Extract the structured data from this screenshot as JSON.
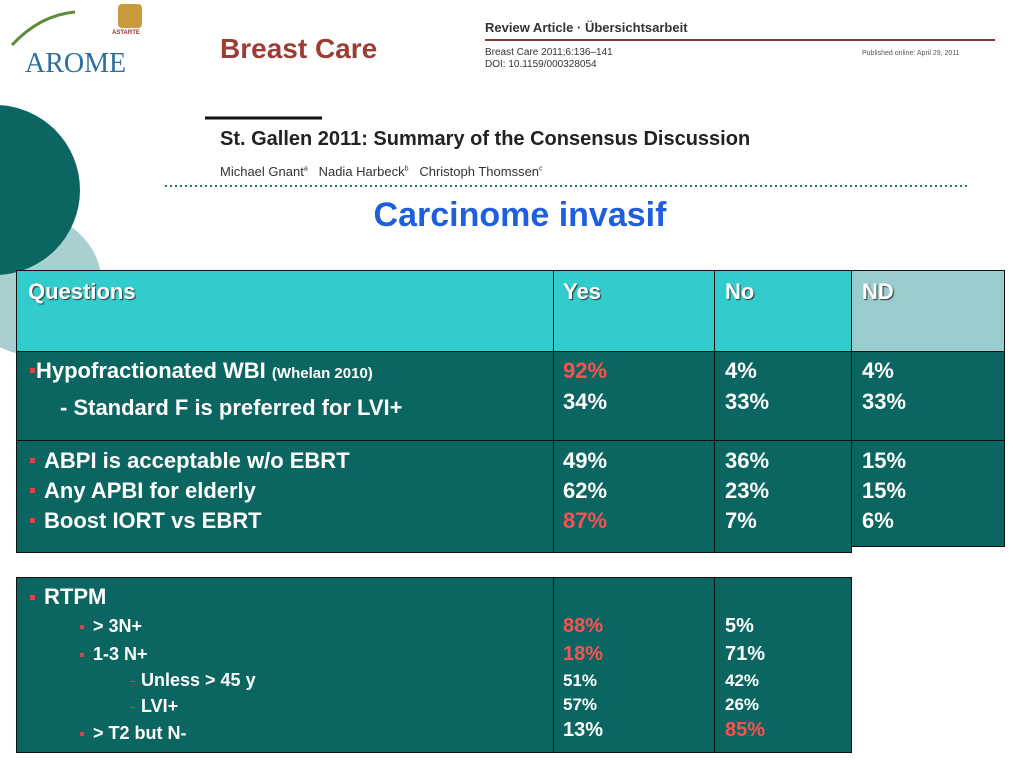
{
  "logo": {
    "text": "AROME",
    "badge": "ASTARTE"
  },
  "header": {
    "journal": "Breast Care",
    "article_type": "Review Article · Übersichtsarbeit",
    "citation": "Breast Care 2011;6:136–141",
    "doi": "DOI: 10.1159/000328054",
    "published": "Published online: April 29, 2011",
    "paper_title": "St. Gallen 2011: Summary of the Consensus Discussion",
    "authors": [
      {
        "name": "Michael Gnant",
        "affil": "a"
      },
      {
        "name": "Nadia Harbeck",
        "affil": "b"
      },
      {
        "name": "Christoph Thomssen",
        "affil": "c"
      }
    ]
  },
  "title": "Carcinome invasif",
  "table": {
    "header": [
      "Questions",
      "Yes",
      "No",
      "ND"
    ],
    "rows": [
      {
        "questions": [
          {
            "text": "Hypofractionated WBI",
            "note": "(Whelan 2010)"
          },
          {
            "text": "- Standard F is preferred for LVI+"
          }
        ],
        "yes": [
          "92%",
          "34%"
        ],
        "no": [
          "4%",
          "33%"
        ],
        "nd": [
          "4%",
          "33%"
        ]
      },
      {
        "questions": [
          {
            "text": "ABPI  is acceptable w/o EBRT"
          },
          {
            "text": "Any APBI for elderly"
          },
          {
            "text": "Boost IORT vs EBRT"
          }
        ],
        "yes": [
          "49%",
          "62%",
          "87%"
        ],
        "no": [
          "36%",
          "23%",
          "7%"
        ],
        "nd": [
          "15%",
          "15%",
          "6%"
        ]
      }
    ]
  },
  "table2": {
    "questions": [
      "RTPM",
      "> 3N+",
      "1-3 N+",
      "Unless > 45 y",
      "LVI+",
      "> T2 but N-"
    ],
    "yes": [
      "88%",
      "18%",
      "51%",
      "57%",
      "13%"
    ],
    "no": [
      "5%",
      "71%",
      "42%",
      "26%",
      "85%"
    ]
  }
}
